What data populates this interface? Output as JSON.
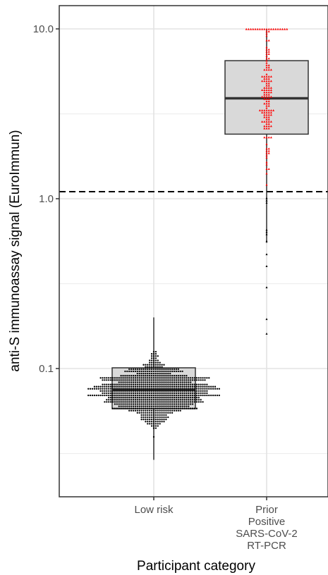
{
  "chart_data": {
    "type": "box-beeswarm",
    "xlabel": "Participant category",
    "ylabel": "anti-S immunoassay signal (EuroImmun)",
    "y_scale": "log10",
    "ylim": [
      0.022,
      13.5
    ],
    "y_ticks": [
      {
        "value": 0.1,
        "label": "0.1"
      },
      {
        "value": 1.0,
        "label": "1.0"
      },
      {
        "value": 10.0,
        "label": "10.0"
      }
    ],
    "grid": true,
    "threshold": 1.1,
    "categories": [
      {
        "label_lines": [
          "Low risk"
        ],
        "point_color": "#000000",
        "point_shape": "circle",
        "n_points_approx": 1000,
        "box": {
          "q1": 0.058,
          "median": 0.075,
          "q3": 0.101,
          "whisker_low": 0.029,
          "whisker_high": 0.2
        },
        "range": [
          0.024,
          0.3
        ]
      },
      {
        "label_lines": [
          "Prior",
          "Positive",
          "SARS-CoV-2",
          "RT-PCR"
        ],
        "point_color": "#ff0000",
        "point_color_below_threshold": "#000000",
        "point_shape": "triangle",
        "n_points_approx": 160,
        "box": {
          "q1": 2.4,
          "median": 3.9,
          "q3": 6.5,
          "whisker_low": 0.55,
          "whisker_high": 10.0
        },
        "outliers": [
          0.16,
          0.195,
          0.3,
          0.4,
          0.47
        ]
      }
    ]
  }
}
